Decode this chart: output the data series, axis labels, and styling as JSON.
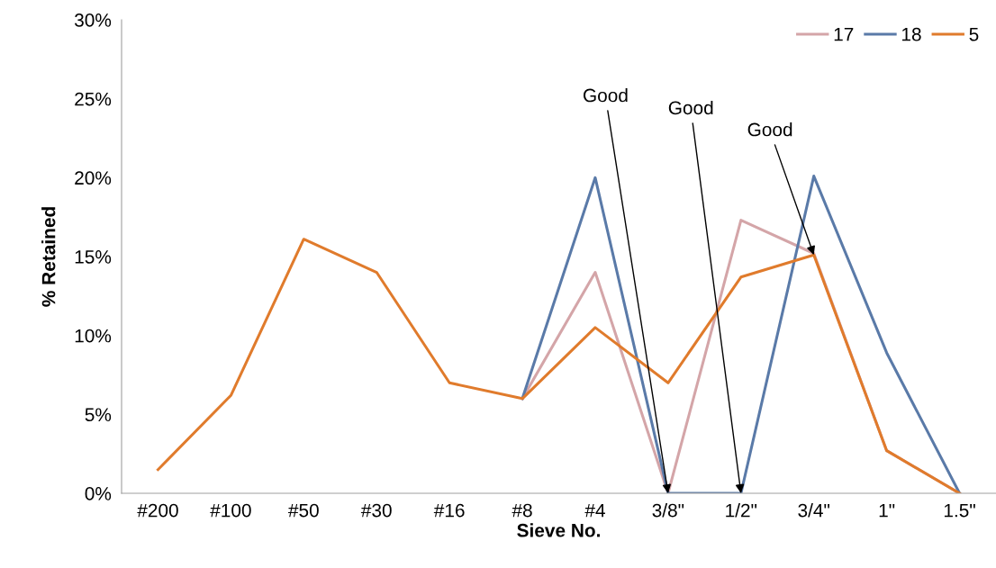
{
  "chart_data": {
    "type": "line",
    "xlabel": "Sieve No.",
    "ylabel": "% Retained",
    "categories": [
      "#200",
      "#100",
      "#50",
      "#30",
      "#16",
      "#8",
      "#4",
      "3/8\"",
      "1/2\"",
      "3/4\"",
      "1\"",
      "1.5\""
    ],
    "series": [
      {
        "name": "17",
        "color": "#d4a5a8",
        "values": [
          null,
          null,
          null,
          null,
          null,
          6.0,
          14.0,
          0,
          17.3,
          15.2,
          2.7,
          0
        ]
      },
      {
        "name": "18",
        "color": "#5a7aa8",
        "values": [
          null,
          null,
          null,
          null,
          null,
          6.0,
          20.0,
          0,
          0,
          20.1,
          8.9,
          0
        ]
      },
      {
        "name": "5",
        "color": "#e07b2c",
        "values": [
          1.5,
          6.2,
          16.1,
          14.0,
          7.0,
          6.0,
          10.5,
          7.0,
          13.7,
          15.1,
          2.7,
          0
        ]
      }
    ],
    "ylim": [
      0,
      30
    ],
    "yticks": [
      {
        "value": 0,
        "label": "0%"
      },
      {
        "value": 5,
        "label": "5%"
      },
      {
        "value": 10,
        "label": "10%"
      },
      {
        "value": 15,
        "label": "15%"
      },
      {
        "value": 20,
        "label": "20%"
      },
      {
        "value": 25,
        "label": "25%"
      },
      {
        "value": 30,
        "label": "30%"
      }
    ],
    "annotations": [
      {
        "text": "Good",
        "x": "3/8\"",
        "y": 0
      },
      {
        "text": "Good",
        "x": "1/2\"",
        "y": 0
      },
      {
        "text": "Good",
        "x": "3/4\"",
        "y": 15.1
      }
    ],
    "grid": false,
    "legend": "top right",
    "marker": "none",
    "line_style": "solid"
  }
}
